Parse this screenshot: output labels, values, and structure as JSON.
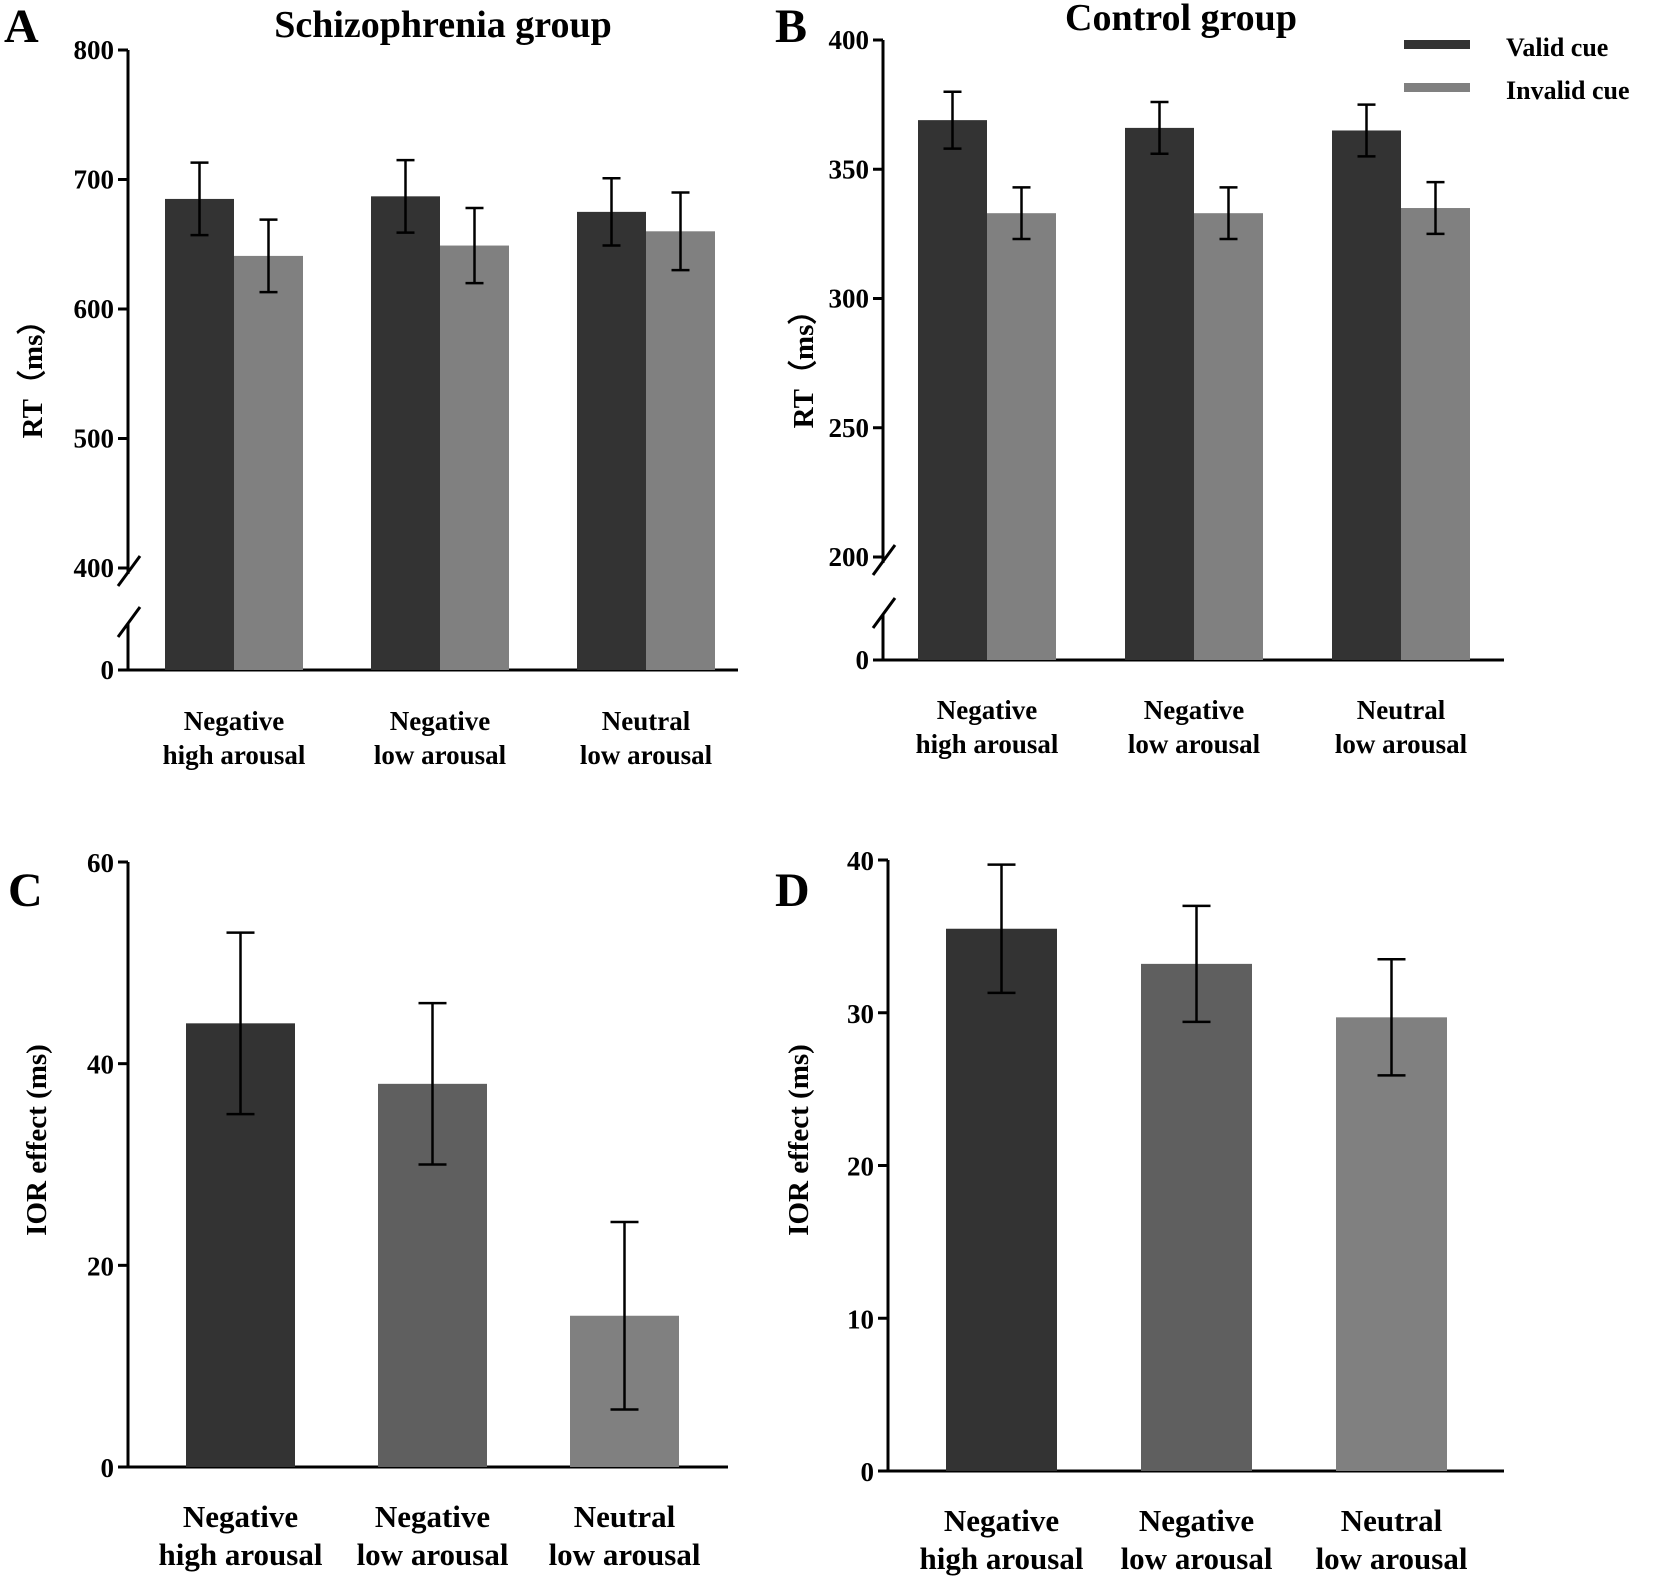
{
  "colors": {
    "valid": "#333333",
    "invalid": "#808080",
    "mid": "#5f5f5f",
    "axis": "#000000"
  },
  "legend": [
    {
      "label": "Valid cue",
      "color": "#333333"
    },
    {
      "label": "Invalid cue",
      "color": "#808080"
    }
  ],
  "chart_data": [
    {
      "panel": "A",
      "type": "bar",
      "title": "Schizophrenia group",
      "ylabel": "RT（ms）",
      "categories": [
        [
          "Negative",
          "high arousal"
        ],
        [
          "Negative",
          "low arousal"
        ],
        [
          "Neutral",
          "low arousal"
        ]
      ],
      "yticks": [
        0,
        400,
        500,
        600,
        700,
        800
      ],
      "ylim_break": [
        0,
        400
      ],
      "ylim": [
        400,
        800
      ],
      "series": [
        {
          "name": "Valid cue",
          "values": [
            685,
            687,
            675
          ],
          "errors": [
            28,
            28,
            26
          ]
        },
        {
          "name": "Invalid cue",
          "values": [
            641,
            649,
            660
          ],
          "errors": [
            28,
            29,
            30
          ]
        }
      ]
    },
    {
      "panel": "B",
      "type": "bar",
      "title": "Control group",
      "ylabel": "RT（ms）",
      "categories": [
        [
          "Negative",
          "high arousal"
        ],
        [
          "Negative",
          "low arousal"
        ],
        [
          "Neutral",
          "low arousal"
        ]
      ],
      "yticks": [
        0,
        200,
        250,
        300,
        350,
        400
      ],
      "ylim_break": [
        0,
        200
      ],
      "ylim": [
        200,
        400
      ],
      "series": [
        {
          "name": "Valid cue",
          "values": [
            369,
            366,
            365
          ],
          "errors": [
            11,
            10,
            10
          ]
        },
        {
          "name": "Invalid cue",
          "values": [
            333,
            333,
            335
          ],
          "errors": [
            10,
            10,
            10
          ]
        }
      ]
    },
    {
      "panel": "C",
      "type": "bar",
      "title": "",
      "ylabel": "IOR effect (ms)",
      "categories": [
        [
          "Negative",
          "high arousal"
        ],
        [
          "Negative",
          "low arousal"
        ],
        [
          "Neutral",
          "low arousal"
        ]
      ],
      "yticks": [
        0,
        20,
        40,
        60
      ],
      "ylim": [
        0,
        60
      ],
      "values": [
        44,
        38,
        15
      ],
      "errors": [
        9,
        8,
        9.3
      ]
    },
    {
      "panel": "D",
      "type": "bar",
      "title": "",
      "ylabel": "IOR effect (ms)",
      "categories": [
        [
          "Negative",
          "high arousal"
        ],
        [
          "Negative",
          "low arousal"
        ],
        [
          "Neutral",
          "low arousal"
        ]
      ],
      "yticks": [
        0,
        10,
        20,
        30,
        40
      ],
      "ylim": [
        0,
        40
      ],
      "values": [
        35.5,
        33.2,
        29.7
      ],
      "errors": [
        4.2,
        3.8,
        3.8
      ]
    }
  ]
}
